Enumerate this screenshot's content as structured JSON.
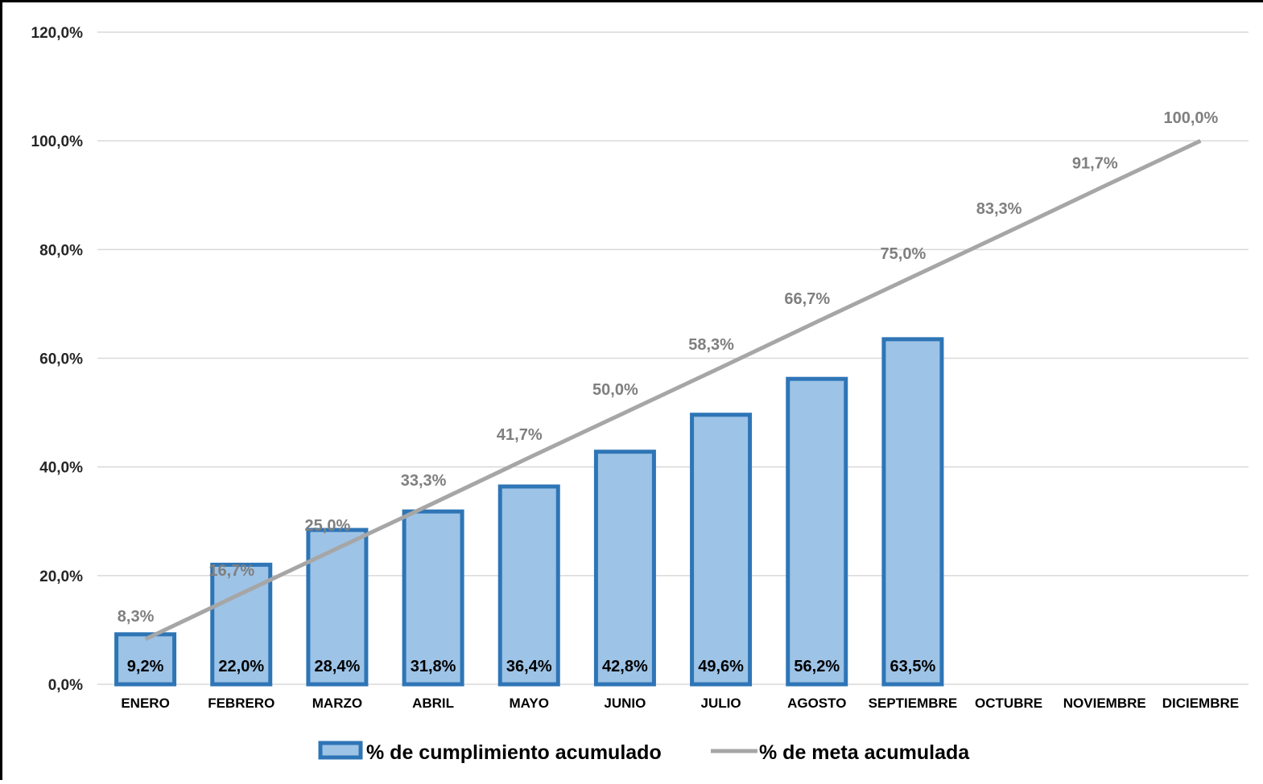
{
  "chart_data": {
    "type": "bar",
    "categories": [
      "ENERO",
      "FEBRERO",
      "MARZO",
      "ABRIL",
      "MAYO",
      "JUNIO",
      "JULIO",
      "AGOSTO",
      "SEPTIEMBRE",
      "OCTUBRE",
      "NOVIEMBRE",
      "DICIEMBRE"
    ],
    "series": [
      {
        "name": "% de cumplimiento acumulado",
        "type": "bar",
        "values": [
          9.2,
          22.0,
          28.4,
          31.8,
          36.4,
          42.8,
          49.6,
          56.2,
          63.5,
          null,
          null,
          null
        ],
        "labels": [
          "9,2%",
          "22,0%",
          "28,4%",
          "31,8%",
          "36,4%",
          "42,8%",
          "49,6%",
          "56,2%",
          "63,5%",
          "",
          "",
          ""
        ]
      },
      {
        "name": "% de meta acumulada",
        "type": "line",
        "values": [
          8.3,
          16.7,
          25.0,
          33.3,
          41.7,
          50.0,
          58.3,
          66.7,
          75.0,
          83.3,
          91.7,
          100.0
        ],
        "labels": [
          "8,3%",
          "16,7%",
          "25,0%",
          "33,3%",
          "41,7%",
          "50,0%",
          "58,3%",
          "66,7%",
          "75,0%",
          "83,3%",
          "91,7%",
          "100,0%"
        ]
      }
    ],
    "ylim": [
      0,
      120
    ],
    "yticks": [
      0,
      20,
      40,
      60,
      80,
      100,
      120
    ],
    "ytick_labels": [
      "0,0%",
      "20,0%",
      "40,0%",
      "60,0%",
      "80,0%",
      "100,0%",
      "120,0%"
    ],
    "grid": true,
    "legend_position": "bottom",
    "colors": {
      "bar_fill": "#9dc3e6",
      "bar_stroke": "#2e75b6",
      "line": "#a6a6a6",
      "line_label": "#7f7f7f",
      "grid": "#d9d9d9",
      "axis_text": "#262626"
    }
  }
}
